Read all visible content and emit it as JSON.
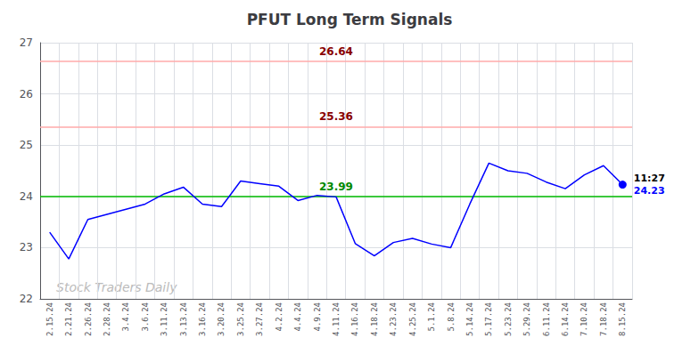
{
  "chart_data": {
    "type": "line",
    "title": "PFUT Long Term Signals",
    "categories": [
      "2.15.24",
      "2.21.24",
      "2.26.24",
      "2.28.24",
      "3.4.24",
      "3.6.24",
      "3.11.24",
      "3.13.24",
      "3.16.24",
      "3.20.24",
      "3.25.24",
      "3.27.24",
      "4.2.24",
      "4.4.24",
      "4.9.24",
      "4.11.24",
      "4.16.24",
      "4.18.24",
      "4.23.24",
      "4.25.24",
      "5.1.24",
      "5.8.24",
      "5.14.24",
      "5.17.24",
      "5.23.24",
      "5.29.24",
      "6.11.24",
      "6.14.24",
      "7.10.24",
      "7.18.24",
      "8.15.24"
    ],
    "values": [
      23.3,
      22.78,
      23.55,
      23.65,
      23.75,
      23.85,
      24.05,
      24.18,
      23.85,
      23.8,
      24.3,
      24.25,
      24.2,
      23.92,
      24.02,
      23.99,
      23.08,
      22.84,
      23.1,
      23.18,
      23.07,
      23.0,
      23.85,
      24.65,
      24.5,
      24.45,
      24.28,
      24.15,
      24.42,
      24.6,
      24.23
    ],
    "color": "blue",
    "hlines": [
      {
        "value": 24.0,
        "label": "23.99",
        "color": "#00bb00",
        "label_color": "#008800"
      },
      {
        "value": 25.36,
        "label": "25.36",
        "color": "#ffaaaa",
        "label_color": "#880000"
      },
      {
        "value": 26.64,
        "label": "26.64",
        "color": "#ffaaaa",
        "label_color": "#880000"
      }
    ],
    "annotations": [
      {
        "text": "11:27",
        "color": "black"
      },
      {
        "text": "24.23",
        "color": "blue"
      }
    ],
    "watermark": {
      "text": "Stock Traders Daily",
      "color": "#bbbbbb"
    },
    "ylim": [
      22,
      27
    ],
    "yticks": [
      22,
      23,
      24,
      25,
      26,
      27
    ],
    "grid": true
  }
}
